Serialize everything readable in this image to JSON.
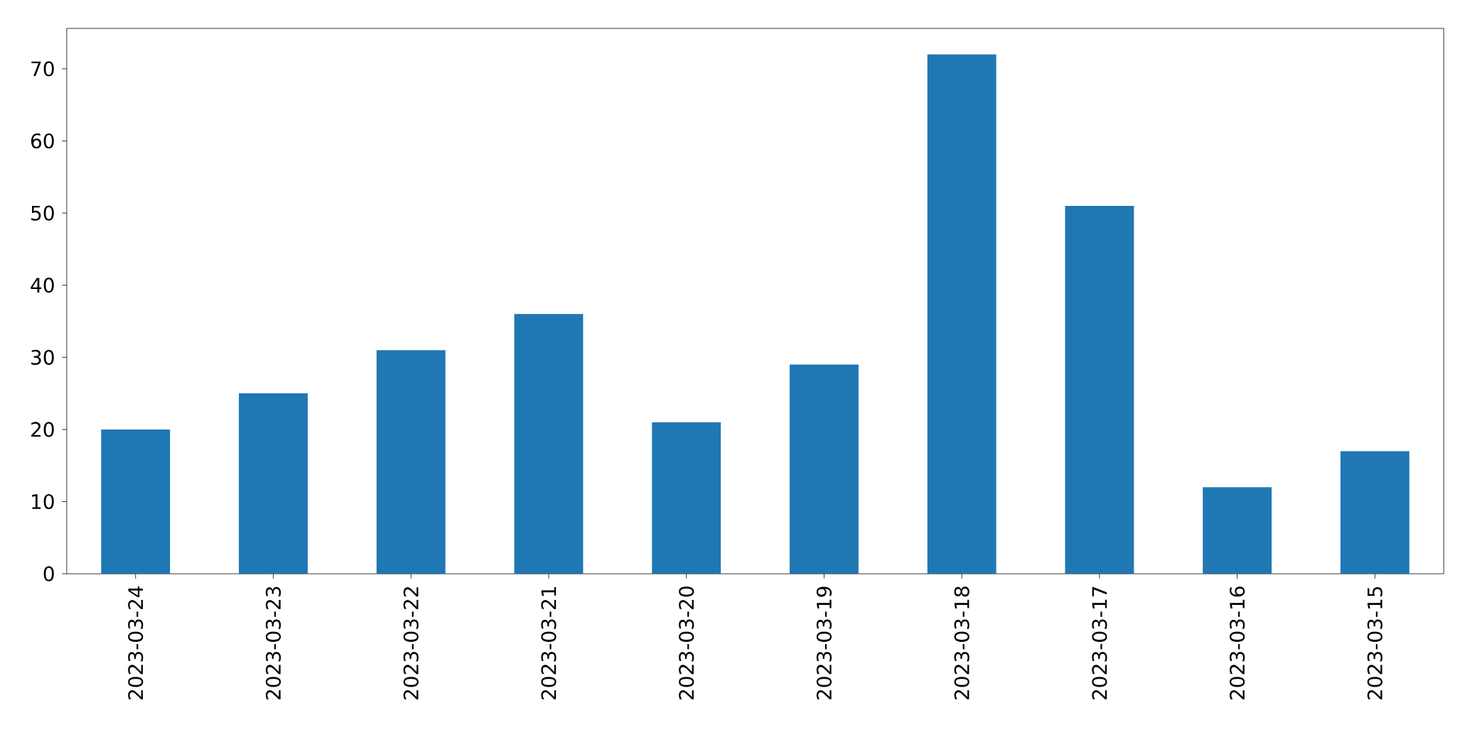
{
  "chart_data": {
    "type": "bar",
    "categories": [
      "2023-03-24",
      "2023-03-23",
      "2023-03-22",
      "2023-03-21",
      "2023-03-20",
      "2023-03-19",
      "2023-03-18",
      "2023-03-17",
      "2023-03-16",
      "2023-03-15"
    ],
    "values": [
      20,
      25,
      31,
      36,
      21,
      29,
      72,
      51,
      12,
      17
    ],
    "color": "#1f77b4",
    "ylim": [
      0,
      75.6
    ],
    "yticks": [
      0,
      10,
      20,
      30,
      40,
      50,
      60,
      70
    ]
  }
}
